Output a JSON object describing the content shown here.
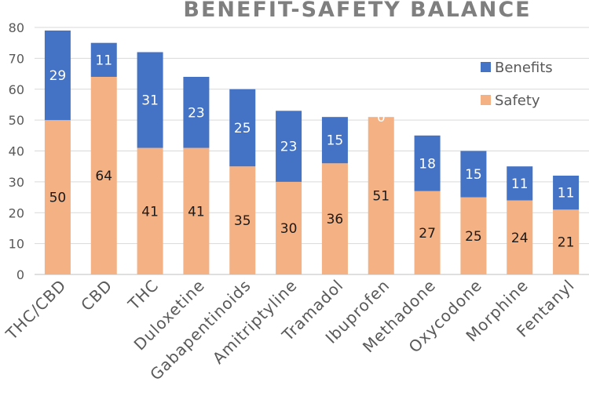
{
  "chart_data": {
    "type": "bar",
    "stacked": true,
    "title": "BENEFIT-SAFETY BALANCE",
    "xlabel": "",
    "ylabel": "",
    "ylim": [
      0,
      80
    ],
    "yticks": [
      0,
      10,
      20,
      30,
      40,
      50,
      60,
      70,
      80
    ],
    "grid": true,
    "legend_position": "top-right",
    "categories": [
      "THC/CBD",
      "CBD",
      "THC",
      "Duloxetine",
      "Gabapentinoids",
      "Amitriptyline",
      "Tramadol",
      "Ibuprofen",
      "Methadone",
      "Oxycodone",
      "Morphine",
      "Fentanyl"
    ],
    "series": [
      {
        "name": "Safety",
        "color": "#f4b183",
        "values": [
          50,
          64,
          41,
          41,
          35,
          30,
          36,
          51,
          27,
          25,
          24,
          21
        ]
      },
      {
        "name": "Benefits",
        "color": "#4472c4",
        "values": [
          29,
          11,
          31,
          23,
          25,
          23,
          15,
          0,
          18,
          15,
          11,
          11
        ]
      }
    ],
    "legend": [
      "Benefits",
      "Safety"
    ]
  }
}
